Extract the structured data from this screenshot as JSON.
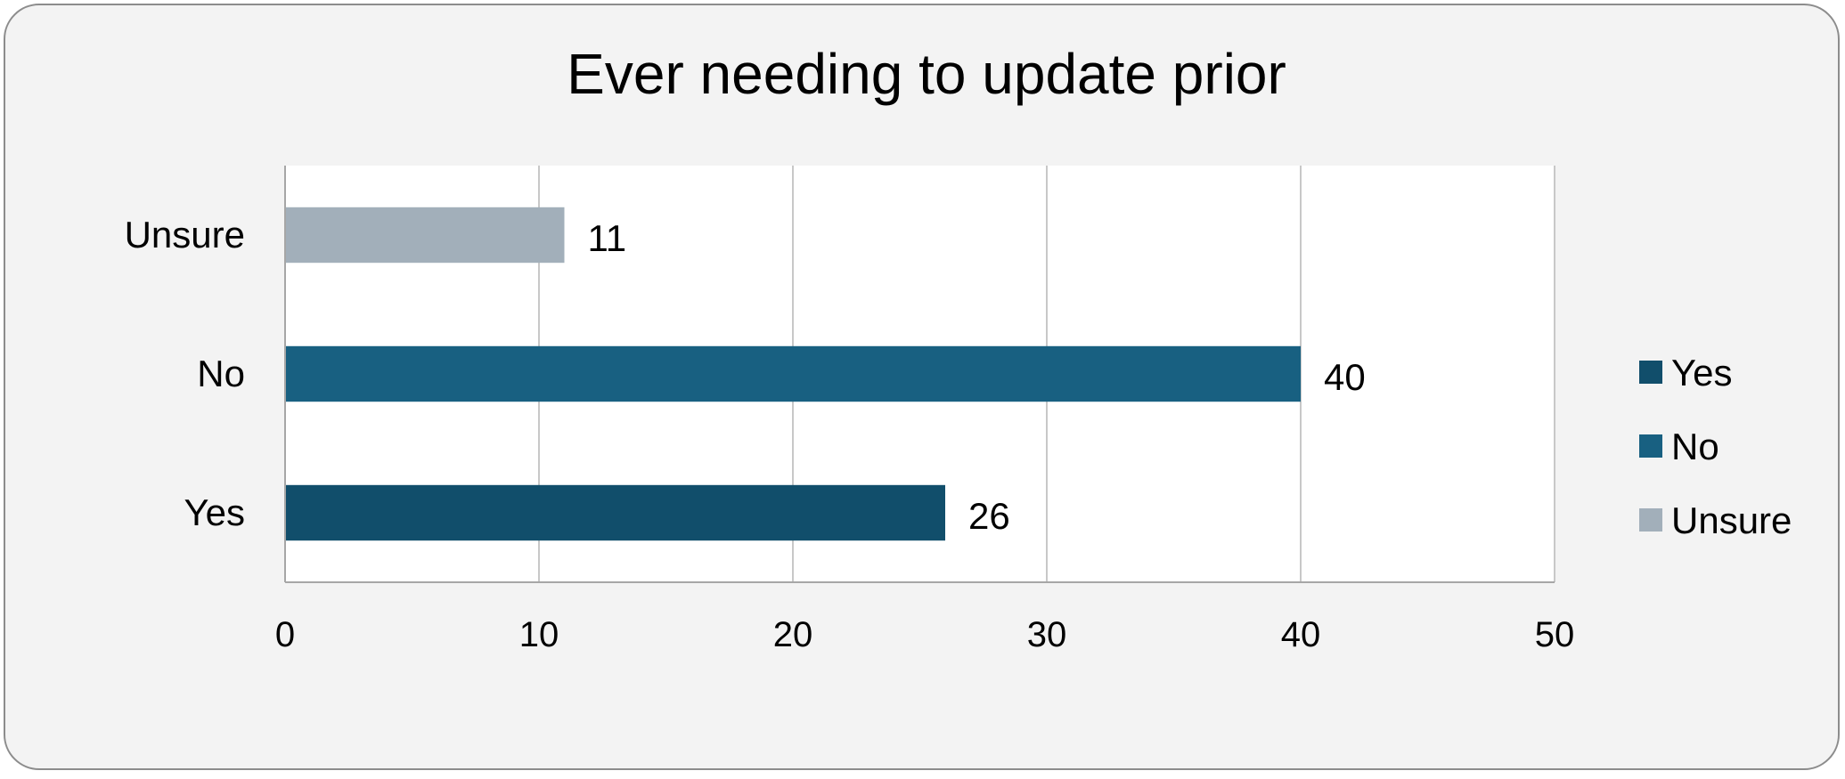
{
  "chart_data": {
    "type": "bar",
    "orientation": "horizontal",
    "title": "Ever needing to update prior",
    "categories": [
      "Yes",
      "No",
      "Unsure"
    ],
    "values": [
      26,
      40,
      11
    ],
    "colors": [
      "#114e6b",
      "#186081",
      "#a2afba"
    ],
    "xlim": [
      0,
      50
    ],
    "xticks": [
      0,
      10,
      20,
      30,
      40,
      50
    ],
    "grid": true,
    "data_labels": true,
    "legend": {
      "placement": "right",
      "entries": [
        "Yes",
        "No",
        "Unsure"
      ]
    }
  }
}
